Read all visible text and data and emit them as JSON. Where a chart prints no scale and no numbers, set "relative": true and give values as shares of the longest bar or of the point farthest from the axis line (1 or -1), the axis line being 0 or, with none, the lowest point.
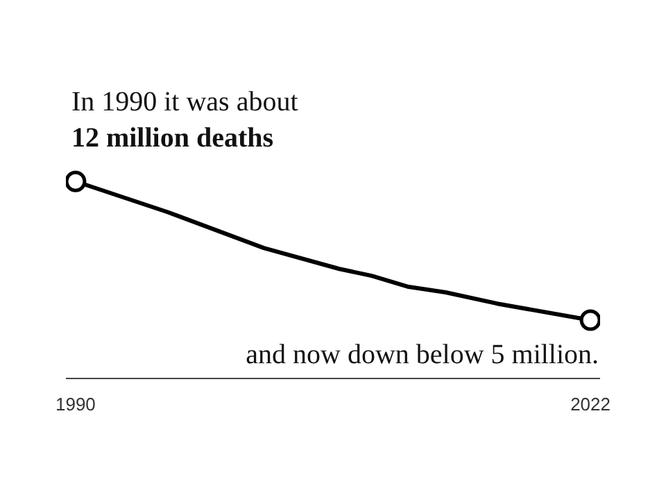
{
  "chart_data": {
    "type": "line",
    "relative": true,
    "xlim": [
      1989.4,
      2022.6
    ],
    "xticks": [
      1990,
      2022
    ],
    "tick_labels": "x",
    "grid": false,
    "annotations": [
      {
        "text": "In 1990 it was about\n12 million deaths",
        "x": 1990,
        "y": 1
      },
      {
        "text": "and now down below 5 million.",
        "x": 2022,
        "y": 0.296
      }
    ],
    "series": [
      {
        "color": "#000000",
        "marker": "none",
        "x": [
          1990,
          1995.7,
          2001.7,
          2006.4,
          2008.4,
          2010.7,
          2013,
          2016.2,
          2022
        ],
        "values": [
          1,
          0.845,
          0.662,
          0.556,
          0.521,
          0.465,
          0.437,
          0.38,
          0.296
        ]
      },
      {
        "type": "scatter",
        "color": "#000000",
        "marker": "circle",
        "x": [
          1990,
          2022
        ],
        "values": [
          1,
          0.296
        ]
      }
    ]
  }
}
